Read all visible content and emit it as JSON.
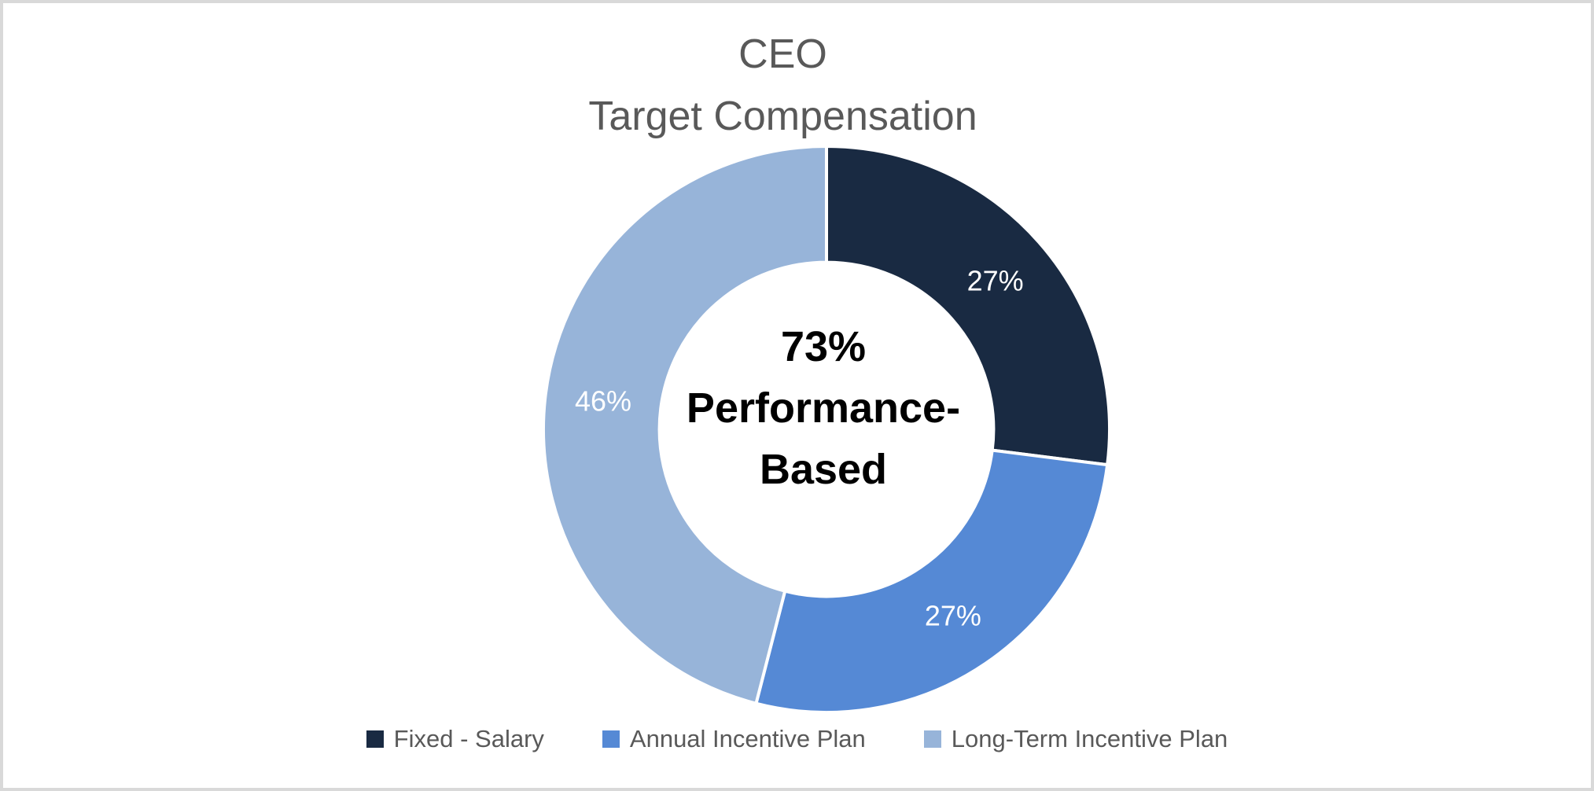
{
  "chart_data": {
    "type": "pie",
    "subtype": "donut",
    "title": "CEO Target Compensation",
    "title_lines": [
      "CEO",
      "Target Compensation"
    ],
    "segments": [
      {
        "label": "Fixed - Salary",
        "value": 27,
        "data_label": "27%",
        "color": "#192a42"
      },
      {
        "label": "Annual Incentive Plan",
        "value": 27,
        "data_label": "27%",
        "color": "#5589d5"
      },
      {
        "label": "Long-Term Incentive Plan",
        "value": 46,
        "data_label": "46%",
        "color": "#97b4d9"
      }
    ],
    "center_label": "73% Performance-Based",
    "center_label_lines": [
      "73%",
      "Performance-",
      "Based"
    ],
    "start_angle_deg": 0,
    "direction": "clockwise",
    "hole_ratio": 0.59,
    "gap_color": "#ffffff",
    "data_label_color": "#ffffff",
    "title_color": "#595959",
    "legend_text_color": "#595959",
    "canvas_border_color": "#d9d9d9",
    "legend_position": "bottom",
    "grid": false
  }
}
